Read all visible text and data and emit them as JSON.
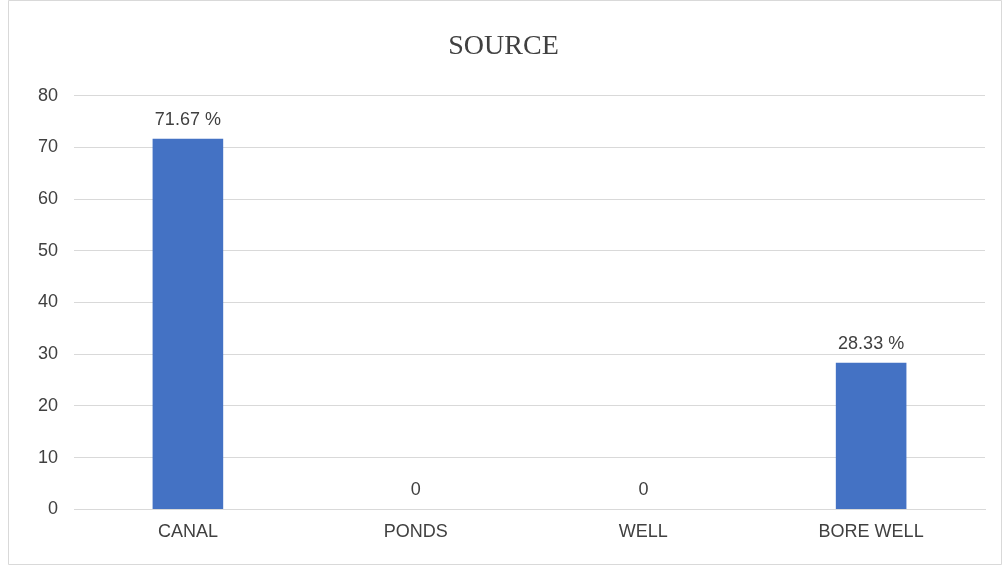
{
  "chart_data": {
    "type": "bar",
    "title": "SOURCE",
    "categories": [
      "CANAL",
      "PONDS",
      "WELL",
      "BORE WELL"
    ],
    "values": [
      71.67,
      0,
      0,
      28.33
    ],
    "value_labels": [
      "71.67 %",
      "0",
      "0",
      "28.33 %"
    ],
    "color": "#4472c4",
    "ylim": [
      0,
      80
    ],
    "yticks": [
      0,
      10,
      20,
      30,
      40,
      50,
      60,
      70,
      80
    ],
    "grid": "y",
    "legend": false
  }
}
